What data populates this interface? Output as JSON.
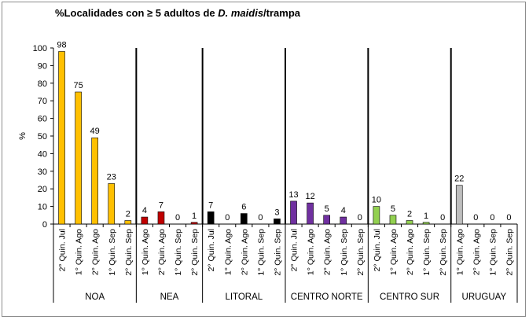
{
  "chart_data": {
    "type": "bar",
    "title_parts": [
      "%Localidades con ≥ 5 adultos de ",
      "D. maidis",
      "/trampa"
    ],
    "ylabel": "%",
    "ylim": [
      0,
      100
    ],
    "yticks": [
      0,
      10,
      20,
      30,
      40,
      50,
      60,
      70,
      80,
      90,
      100
    ],
    "groups": [
      {
        "name": "NOA",
        "color": "#FFC000",
        "categories": [
          "2° Quin. Jul",
          "1° Quin. Ago",
          "2° Quin. Ago",
          "1° Quin. Sep",
          "2° Quin. Sep"
        ],
        "values": [
          98,
          75,
          49,
          23,
          2
        ]
      },
      {
        "name": "NEA",
        "color": "#C00000",
        "categories": [
          "1° Quin. Ago",
          "2° Quin. Ago",
          "1° Quin. Sep",
          "2° Quin. Sep"
        ],
        "values": [
          4,
          7,
          0,
          1
        ]
      },
      {
        "name": "LITORAL",
        "color": "#000000",
        "categories": [
          "2° Quin. Jul",
          "1° Quin. Ago",
          "2° Quin. Ago",
          "1° Quin. Sep",
          "2° Quin. Sep"
        ],
        "values": [
          7,
          0,
          6,
          0,
          3
        ]
      },
      {
        "name": "CENTRO NORTE",
        "color": "#7030A0",
        "categories": [
          "2° Quin. Jul",
          "1° Quin. Ago",
          "2° Quin. Ago",
          "1° Quin. Sep",
          "2° Quin. Sep"
        ],
        "values": [
          13,
          12,
          5,
          4,
          0
        ]
      },
      {
        "name": "CENTRO SUR",
        "color": "#92D050",
        "categories": [
          "2° Quin. Jul",
          "1° Quin. Ago",
          "2° Quin. Ago",
          "1° Quin. Sep",
          "2° Quin. Sep"
        ],
        "values": [
          10,
          5,
          2,
          1,
          0
        ]
      },
      {
        "name": "URUGUAY",
        "color": "#BFBFBF",
        "categories": [
          "1° Quin. Ago",
          "2° Quin. Ago",
          "1° Quin. Sep",
          "2° Quin. Sep"
        ],
        "values": [
          22,
          0,
          0,
          0
        ]
      }
    ],
    "grid": false,
    "legend": "none"
  }
}
